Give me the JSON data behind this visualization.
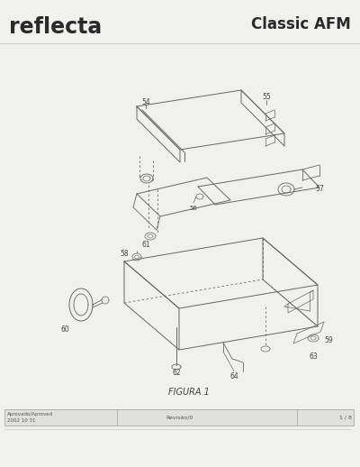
{
  "bg_color": "#f0f0ee",
  "title_left": "reflecta",
  "title_right": "Classic AFM",
  "figure_label": "FIGURA 1",
  "footer_left1": "Aprovado/Aproved",
  "footer_left2": "2002 10 31",
  "footer_center": "Revisão/0",
  "footer_right": "1 / 8",
  "gray": "#666666",
  "dgray": "#444444",
  "title_color": "#2a2a2a",
  "footer_bg": "#e0e0de"
}
